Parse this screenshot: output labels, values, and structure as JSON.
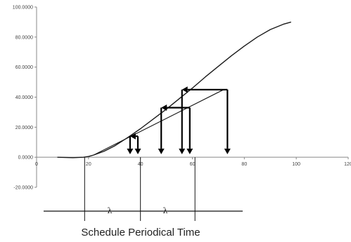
{
  "chart_data": {
    "type": "line",
    "title": "",
    "xlabel": "",
    "ylabel": "",
    "xlim": [
      0,
      120
    ],
    "ylim": [
      -20,
      100
    ],
    "x_ticks": [
      "0",
      "20",
      "40",
      "60",
      "80",
      "100",
      "120"
    ],
    "x_tick_values": [
      0,
      20,
      40,
      60,
      80,
      100,
      120
    ],
    "y_ticks": [
      "-20.0000",
      "0.0000",
      "20.0000",
      "40.0000",
      "60.0000",
      "80.0000",
      "100.0000"
    ],
    "y_tick_values": [
      -20,
      0,
      20,
      40,
      60,
      80,
      100
    ],
    "grid": false,
    "series": [
      {
        "values_xy": [
          [
            8,
            0
          ],
          [
            14,
            -0.3
          ],
          [
            18,
            0
          ],
          [
            20,
            0.5
          ],
          [
            22,
            1.5
          ],
          [
            26,
            4
          ],
          [
            30,
            7.5
          ],
          [
            35,
            13
          ],
          [
            40,
            19
          ],
          [
            45,
            25.5
          ],
          [
            50,
            32
          ],
          [
            55,
            39
          ],
          [
            60,
            46
          ],
          [
            65,
            53.5
          ],
          [
            70,
            60.5
          ],
          [
            75,
            67.5
          ],
          [
            80,
            74
          ],
          [
            85,
            80
          ],
          [
            90,
            85
          ],
          [
            95,
            88.5
          ],
          [
            98,
            90
          ]
        ]
      },
      {
        "values_xy": [
          [
            22,
            1.5
          ],
          [
            72,
            45
          ]
        ]
      }
    ],
    "arrows": [
      {
        "from": [
          73.5,
          45
        ],
        "to": [
          56,
          45
        ]
      },
      {
        "from": [
          59,
          33
        ],
        "to": [
          48,
          33
        ]
      },
      {
        "from": [
          39,
          14
        ],
        "to": [
          36,
          14
        ]
      },
      {
        "from": [
          73.5,
          45
        ],
        "to": [
          73.5,
          2
        ]
      },
      {
        "from": [
          59,
          33
        ],
        "to": [
          59,
          2
        ]
      },
      {
        "from": [
          56,
          45
        ],
        "to": [
          56,
          2
        ]
      },
      {
        "from": [
          48,
          33
        ],
        "to": [
          48,
          2
        ]
      },
      {
        "from": [
          39,
          14
        ],
        "to": [
          39,
          2
        ]
      },
      {
        "from": [
          36,
          14
        ],
        "to": [
          36,
          2
        ]
      }
    ],
    "vertical_markers_x": [
      18.5,
      40,
      61
    ],
    "interval_labels": [
      "λ",
      "λ"
    ]
  },
  "caption": "Schedule Periodical Time"
}
